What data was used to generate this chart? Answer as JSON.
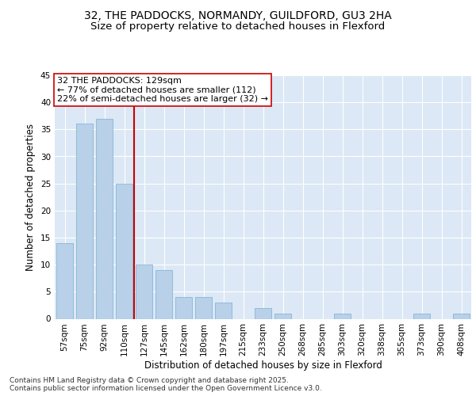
{
  "title1": "32, THE PADDOCKS, NORMANDY, GUILDFORD, GU3 2HA",
  "title2": "Size of property relative to detached houses in Flexford",
  "xlabel": "Distribution of detached houses by size in Flexford",
  "ylabel": "Number of detached properties",
  "categories": [
    "57sqm",
    "75sqm",
    "92sqm",
    "110sqm",
    "127sqm",
    "145sqm",
    "162sqm",
    "180sqm",
    "197sqm",
    "215sqm",
    "233sqm",
    "250sqm",
    "268sqm",
    "285sqm",
    "303sqm",
    "320sqm",
    "338sqm",
    "355sqm",
    "373sqm",
    "390sqm",
    "408sqm"
  ],
  "values": [
    14,
    36,
    37,
    25,
    10,
    9,
    4,
    4,
    3,
    0,
    2,
    1,
    0,
    0,
    1,
    0,
    0,
    0,
    1,
    0,
    1
  ],
  "bar_color": "#b8d0e8",
  "bar_edge_color": "#7aafd4",
  "vline_color": "#cc0000",
  "annotation_text": "32 THE PADDOCKS: 129sqm\n← 77% of detached houses are smaller (112)\n22% of semi-detached houses are larger (32) →",
  "annotation_box_color": "#ffffff",
  "annotation_box_edge": "#cc0000",
  "ylim": [
    0,
    45
  ],
  "yticks": [
    0,
    5,
    10,
    15,
    20,
    25,
    30,
    35,
    40,
    45
  ],
  "background_color": "#dce8f5",
  "footer_text": "Contains HM Land Registry data © Crown copyright and database right 2025.\nContains public sector information licensed under the Open Government Licence v3.0.",
  "title1_fontsize": 10,
  "title2_fontsize": 9.5,
  "axis_label_fontsize": 8.5,
  "tick_fontsize": 7.5,
  "annotation_fontsize": 8,
  "footer_fontsize": 6.5
}
